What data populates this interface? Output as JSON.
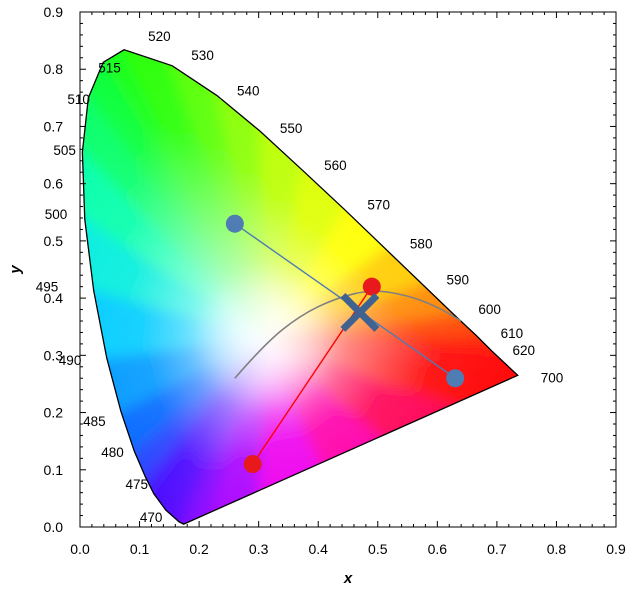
{
  "chart_data": {
    "type": "scatter",
    "title": "",
    "xlabel": "x",
    "ylabel": "y",
    "xlim": [
      0.0,
      0.9
    ],
    "ylim": [
      0.0,
      0.9
    ],
    "x_ticks": [
      "0.0",
      "0.1",
      "0.2",
      "0.3",
      "0.4",
      "0.5",
      "0.6",
      "0.7",
      "0.8",
      "0.9"
    ],
    "y_ticks": [
      "0.0",
      "0.1",
      "0.2",
      "0.3",
      "0.4",
      "0.5",
      "0.6",
      "0.7",
      "0.8",
      "0.9"
    ],
    "grid": false,
    "spectral_locus": [
      {
        "nm": "470",
        "x": 0.124,
        "y": 0.058
      },
      {
        "nm": "475",
        "x": 0.11,
        "y": 0.087
      },
      {
        "nm": "480",
        "x": 0.091,
        "y": 0.133
      },
      {
        "nm": "485",
        "x": 0.069,
        "y": 0.201
      },
      {
        "nm": "490",
        "x": 0.045,
        "y": 0.295
      },
      {
        "nm": "495",
        "x": 0.023,
        "y": 0.413
      },
      {
        "nm": "500",
        "x": 0.008,
        "y": 0.538
      },
      {
        "nm": "505",
        "x": 0.004,
        "y": 0.655
      },
      {
        "nm": "510",
        "x": 0.014,
        "y": 0.75
      },
      {
        "nm": "515",
        "x": 0.039,
        "y": 0.812
      },
      {
        "nm": "520",
        "x": 0.074,
        "y": 0.834
      },
      {
        "nm": "530",
        "x": 0.155,
        "y": 0.806
      },
      {
        "nm": "540",
        "x": 0.23,
        "y": 0.754
      },
      {
        "nm": "550",
        "x": 0.302,
        "y": 0.692
      },
      {
        "nm": "560",
        "x": 0.373,
        "y": 0.624
      },
      {
        "nm": "570",
        "x": 0.444,
        "y": 0.555
      },
      {
        "nm": "580",
        "x": 0.512,
        "y": 0.487
      },
      {
        "nm": "590",
        "x": 0.575,
        "y": 0.424
      },
      {
        "nm": "600",
        "x": 0.627,
        "y": 0.372
      },
      {
        "nm": "610",
        "x": 0.666,
        "y": 0.334
      },
      {
        "nm": "620",
        "x": 0.691,
        "y": 0.308
      },
      {
        "nm": "700",
        "x": 0.735,
        "y": 0.265
      }
    ],
    "planckian_locus": [
      {
        "x": 0.26,
        "y": 0.26
      },
      {
        "x": 0.31,
        "y": 0.32
      },
      {
        "x": 0.37,
        "y": 0.37
      },
      {
        "x": 0.43,
        "y": 0.4
      },
      {
        "x": 0.49,
        "y": 0.415
      },
      {
        "x": 0.55,
        "y": 0.405
      },
      {
        "x": 0.6,
        "y": 0.385
      },
      {
        "x": 0.64,
        "y": 0.36
      }
    ],
    "series": [
      {
        "color": "#e8191c",
        "points": [
          {
            "x": 0.29,
            "y": 0.11
          },
          {
            "x": 0.49,
            "y": 0.42
          }
        ]
      },
      {
        "color": "#4f7cb3",
        "points": [
          {
            "x": 0.26,
            "y": 0.53
          },
          {
            "x": 0.63,
            "y": 0.26
          }
        ]
      }
    ],
    "intersection_marker": {
      "x": 0.47,
      "y": 0.375,
      "color": "#3f6290"
    },
    "colors": {
      "locus_outline": "#000000",
      "planckian": "#808080",
      "red_series": "#e8191c",
      "red_line": "#ff0000",
      "blue_series": "#4f7cb3",
      "cross": "#3f6290"
    }
  }
}
